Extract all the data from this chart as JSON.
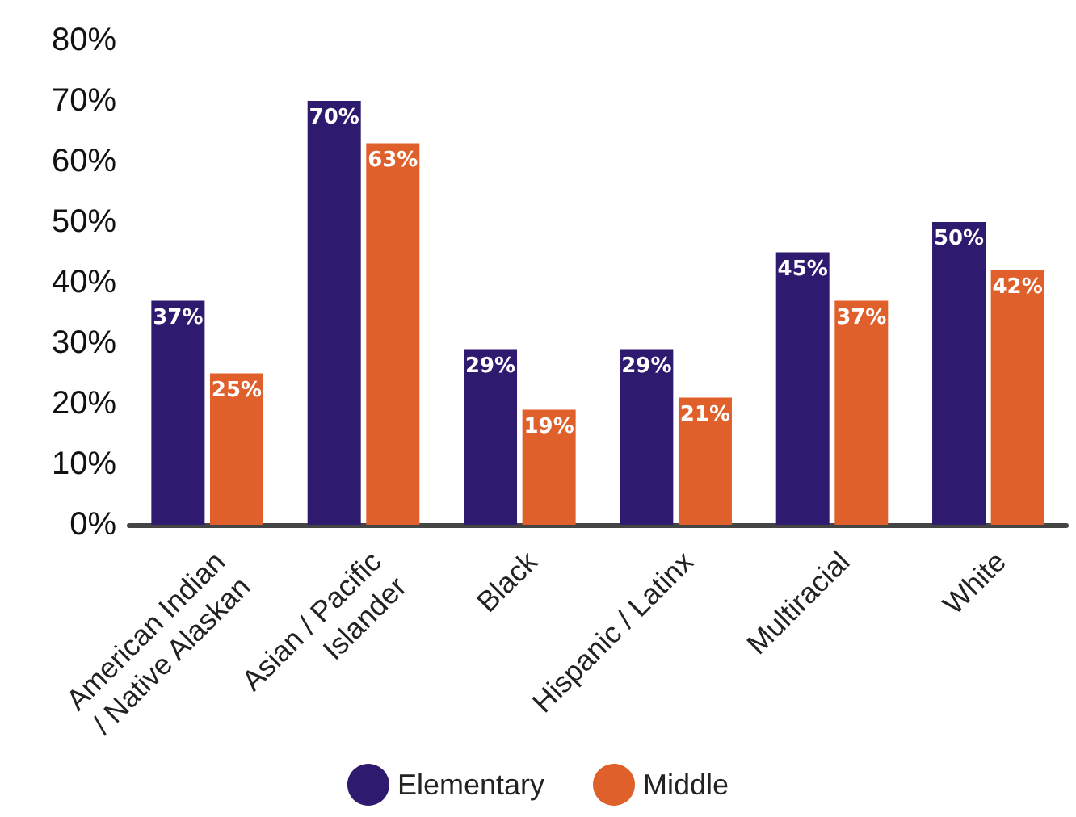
{
  "chart_data": {
    "type": "bar",
    "categories": [
      "American Indian\n/ Native Alaskan",
      "Asian / Pacific\nIslander",
      "Black",
      "Hispanic / Latinx",
      "Multiracial",
      "White"
    ],
    "series": [
      {
        "name": "Elementary",
        "color": "#2e1a6e",
        "values": [
          37,
          70,
          29,
          29,
          45,
          50
        ],
        "value_labels": [
          "37%",
          "70%",
          "29%",
          "29%",
          "45%",
          "50%"
        ]
      },
      {
        "name": "Middle",
        "color": "#e0602b",
        "values": [
          25,
          63,
          19,
          21,
          37,
          42
        ],
        "value_labels": [
          "25%",
          "63%",
          "19%",
          "21%",
          "37%",
          "42%"
        ]
      }
    ],
    "ylim": [
      0,
      80
    ],
    "yticks": [
      {
        "value": 0,
        "label": "0%"
      },
      {
        "value": 10,
        "label": "10%"
      },
      {
        "value": 20,
        "label": "20%"
      },
      {
        "value": 30,
        "label": "30%"
      },
      {
        "value": 40,
        "label": "40%"
      },
      {
        "value": 50,
        "label": "50%"
      },
      {
        "value": 60,
        "label": "60%"
      },
      {
        "value": 70,
        "label": "70%"
      },
      {
        "value": 80,
        "label": "80%"
      }
    ],
    "grid": false,
    "legend": "bottom"
  }
}
